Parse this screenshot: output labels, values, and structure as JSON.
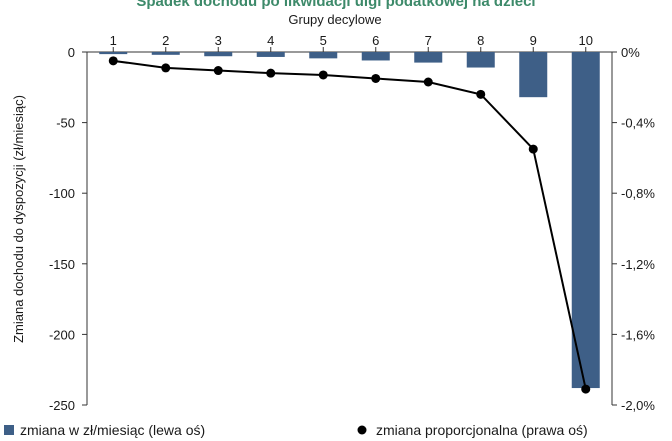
{
  "chart_data": {
    "type": "bar",
    "title": "Spadek dochodu po likwidacji ulgi podatkowej na dzieci",
    "xlabel": "Grupy decylowe",
    "ylabel": "Zmiana dochodu do dyspozycji (zł/miesiąc)",
    "categories": [
      "1",
      "2",
      "3",
      "4",
      "5",
      "6",
      "7",
      "8",
      "9",
      "10"
    ],
    "series": [
      {
        "name": "zmiana w zł/miesiąc (lewa oś)",
        "type": "bar",
        "axis": "left",
        "values": [
          -1.5,
          -2,
          -3,
          -3.5,
          -4.5,
          -6,
          -7.5,
          -11,
          -32,
          -238
        ]
      },
      {
        "name": "zmiana proporcjonalna (prawa oś)",
        "type": "line",
        "axis": "right",
        "values": [
          -0.05,
          -0.09,
          -0.105,
          -0.12,
          -0.13,
          -0.15,
          -0.17,
          -0.24,
          -0.55,
          -1.91
        ]
      }
    ],
    "ylim": [
      -250,
      0
    ],
    "yticks": [
      "0",
      "-50",
      "-100",
      "-150",
      "-200",
      "-250"
    ],
    "y2lim": [
      -2.0,
      0
    ],
    "y2ticks": [
      "0%",
      "-0,4%",
      "-0,8%",
      "-1,2%",
      "-1,6%",
      "-2,0%"
    ],
    "legend": "bottom",
    "grid": false,
    "colors": {
      "bar": "#3e5f87",
      "line": "#000000",
      "axis": "#333333"
    }
  }
}
